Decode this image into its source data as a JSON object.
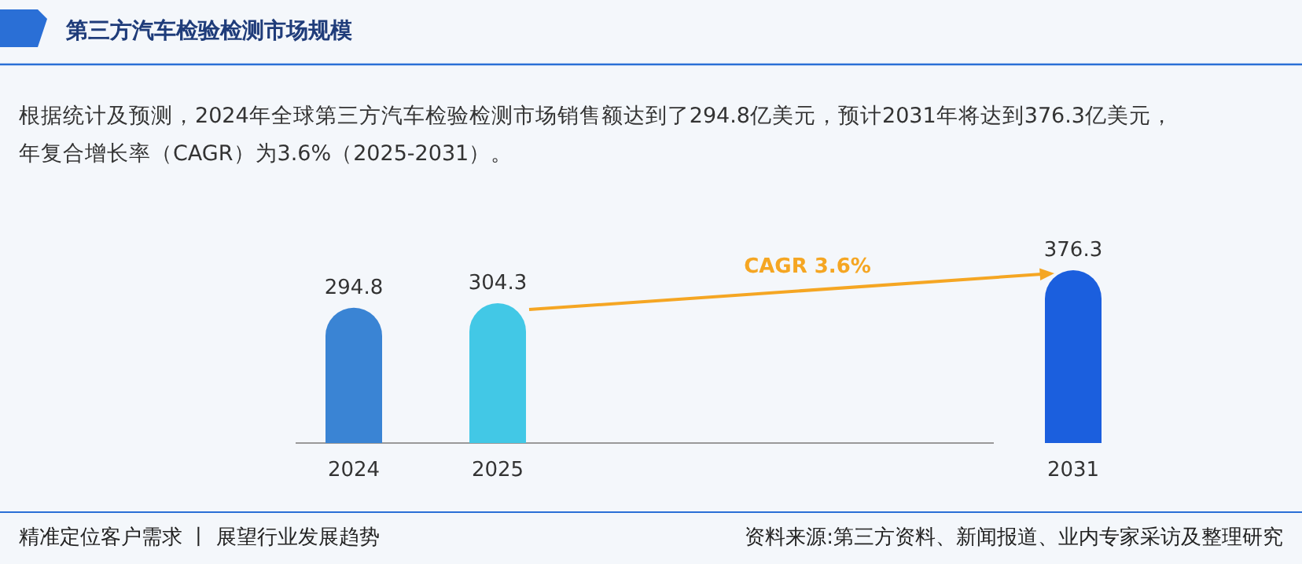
{
  "chart_data": {
    "type": "bar",
    "title": "第三方汽车检验检测市场规模",
    "subtitle": "根据统计及预测，2024年全球第三方汽车检验检测市场销售额达到了294.8亿美元，预计2031年将达到376.3亿美元，年复合增长率（CAGR）为3.6%（2025-2031）。",
    "categories": [
      "2024",
      "2025",
      null,
      null,
      null,
      "2031"
    ],
    "values": [
      294.8,
      304.3,
      null,
      null,
      null,
      376.3
    ],
    "colors": [
      "#3a84d4",
      "#42c8e6",
      null,
      null,
      null,
      "#1b5fde"
    ],
    "data_labels": true,
    "annotations": [
      "CAGR 3.6%",
      "精准定位客户需求 丨 展望行业发展趋势",
      "资料来源:第三方资料、新闻报道、业内专家采访及整理研究"
    ]
  }
}
